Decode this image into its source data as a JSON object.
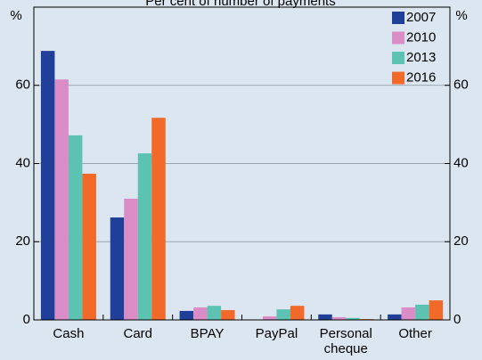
{
  "chart_data": {
    "type": "bar",
    "title": "Per cent of number of payments",
    "ylabel": "%",
    "categories": [
      "Cash",
      "Card",
      "BPAY",
      "PayPal",
      "Personal cheque",
      "Other"
    ],
    "series": [
      {
        "name": "2007",
        "color": "#1f3f99",
        "values": [
          68.8,
          26.2,
          2.3,
          0,
          1.4,
          1.4
        ]
      },
      {
        "name": "2010",
        "color": "#d98cc6",
        "values": [
          61.5,
          31,
          3.2,
          0.9,
          0.7,
          3.2
        ]
      },
      {
        "name": "2013",
        "color": "#5cc3b2",
        "values": [
          47.2,
          42.6,
          3.6,
          2.7,
          0.5,
          3.9
        ]
      },
      {
        "name": "2016",
        "color": "#f26a2a",
        "values": [
          37.4,
          51.7,
          2.5,
          3.6,
          0.2,
          5.0
        ]
      }
    ],
    "ylim": [
      0,
      80
    ],
    "yticks": [
      0,
      20,
      40,
      60
    ],
    "grid": true,
    "legend": "top-right"
  }
}
